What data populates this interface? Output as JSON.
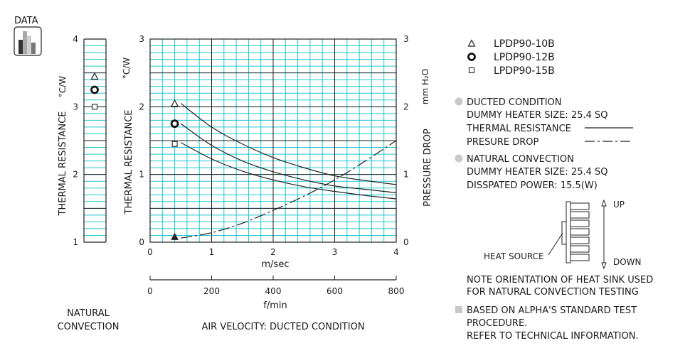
{
  "badge": {
    "label": "DATA"
  },
  "side_chart": {
    "ylabel": "THERMAL  RESISTANCE",
    "unit": "°C/W",
    "yticks": [
      "1",
      "2",
      "3",
      "4"
    ],
    "caption_lines": [
      "NATURAL",
      "CONVECTION"
    ]
  },
  "chart_data": {
    "type": "line",
    "ylabel_left": "THERMAL  RESISTANCE",
    "unit_left": "°C/W",
    "ylabel_right": "PRESSURE  DROP",
    "unit_right": "mm H₂O",
    "xlabel": "m/sec",
    "xlabel2": "f/min",
    "caption": "AIR VELOCITY:  DUCTED CONDITION",
    "xlim": [
      0,
      4
    ],
    "ylim": [
      0,
      3
    ],
    "y2lim": [
      0,
      3
    ],
    "xticks": [
      "0",
      "1",
      "2",
      "3",
      "4"
    ],
    "x2ticks": [
      "0",
      "200",
      "400",
      "600",
      "800"
    ],
    "yticks": [
      "0",
      "1",
      "2",
      "3"
    ],
    "y2ticks": [
      "0",
      "1",
      "2",
      "3"
    ],
    "grid": true,
    "series": [
      {
        "name": "LPDP90-10B",
        "marker": "triangle-open",
        "kind": "thermal",
        "x": [
          0.5,
          1.0,
          1.5,
          2.0,
          2.5,
          3.0,
          3.5,
          4.0
        ],
        "y": [
          2.05,
          1.7,
          1.45,
          1.25,
          1.1,
          0.98,
          0.91,
          0.85
        ]
      },
      {
        "name": "LPDP90-12B",
        "marker": "circle-bold",
        "kind": "thermal",
        "x": [
          0.5,
          1.0,
          1.5,
          2.0,
          2.5,
          3.0,
          3.5,
          4.0
        ],
        "y": [
          1.75,
          1.43,
          1.2,
          1.04,
          0.92,
          0.83,
          0.78,
          0.73
        ]
      },
      {
        "name": "LPDP90-15B",
        "marker": "square-open",
        "kind": "thermal",
        "x": [
          0.5,
          1.0,
          1.5,
          2.0,
          2.5,
          3.0,
          3.5,
          4.0
        ],
        "y": [
          1.47,
          1.23,
          1.05,
          0.92,
          0.82,
          0.75,
          0.69,
          0.64
        ]
      },
      {
        "name": "",
        "marker": "",
        "kind": "pressure",
        "x": [
          0.5,
          1.0,
          1.5,
          2.0,
          2.5,
          3.0,
          3.5,
          4.0
        ],
        "y": [
          0.06,
          0.14,
          0.28,
          0.47,
          0.68,
          0.92,
          1.2,
          1.5
        ]
      }
    ],
    "start_markers": [
      {
        "marker": "triangle-open",
        "x": 0.4,
        "y": 2.05
      },
      {
        "marker": "circle-bold",
        "x": 0.4,
        "y": 1.75
      },
      {
        "marker": "square-open",
        "x": 0.4,
        "y": 1.45
      },
      {
        "marker": "triangle-filled",
        "x": 0.4,
        "y": 0.08
      }
    ]
  },
  "natural_markers": [
    {
      "marker": "triangle-open",
      "value": 3.45
    },
    {
      "marker": "circle-bold",
      "value": 3.25
    },
    {
      "marker": "square-open",
      "value": 3.0
    }
  ],
  "legend": {
    "items": [
      {
        "marker": "triangle-open",
        "label": "LPDP90-10B"
      },
      {
        "marker": "circle-bold",
        "label": "LPDP90-12B"
      },
      {
        "marker": "square-open",
        "label": "LPDP90-15B"
      }
    ]
  },
  "notes": {
    "ducted": {
      "title": "DUCTED CONDITION",
      "heater": "DUMMY HEATER SIZE:  25.4 SQ",
      "thermal": "THERMAL RESISTANCE",
      "pressure": "PRESURE DROP"
    },
    "natural": {
      "title": "NATURAL CONVECTION",
      "heater": "DUMMY HEATER SIZE:  25.4 SQ",
      "power": "DISSPATED POWER: 15.5(W)"
    },
    "diagram": {
      "up": "UP",
      "down": "DOWN",
      "heat_source": "HEAT SOURCE"
    },
    "orientation_lines": [
      "NOTE ORIENTATION OF HEAT SINK USED",
      "FOR NATURAL CONVECTION TESTING"
    ],
    "standard_lines": [
      "BASED ON ALPHA'S STANDARD TEST",
      "PROCEDURE.",
      "REFER TO TECHNICAL INFORMATION."
    ]
  }
}
